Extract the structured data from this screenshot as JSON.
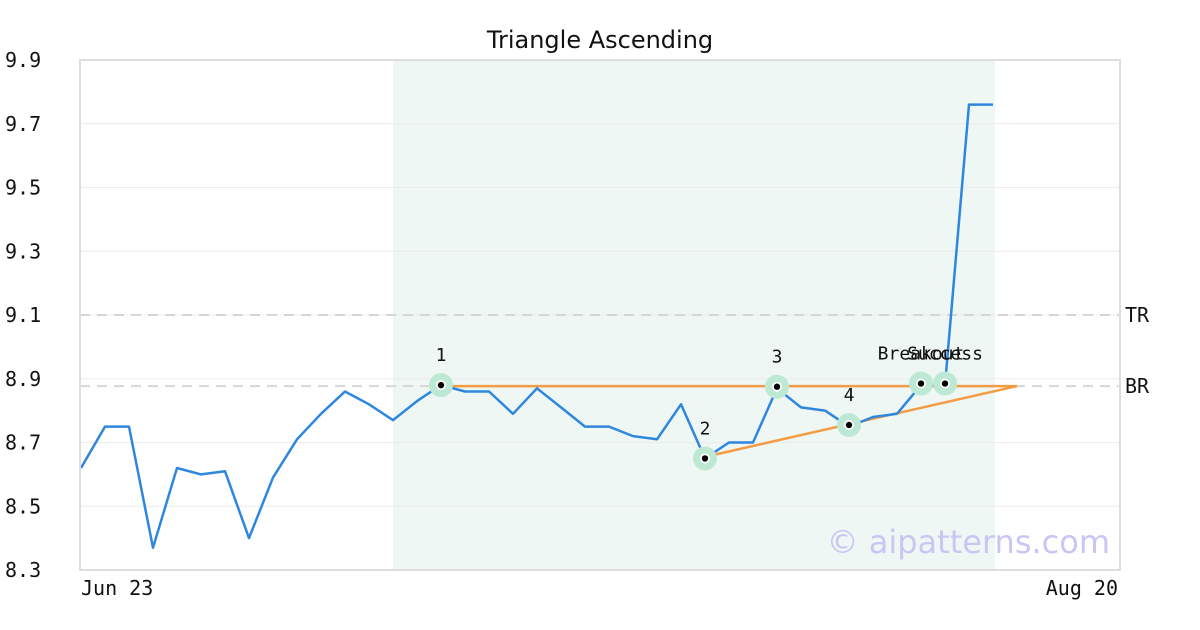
{
  "chart_data": {
    "type": "line",
    "title": "Triangle Ascending",
    "xlabel": "",
    "ylabel": "",
    "x_tick_labels": [
      "Jun 23",
      "Aug 20"
    ],
    "y_ticks": [
      "8.3",
      "8.5",
      "8.7",
      "8.9",
      "9.1",
      "9.3",
      "9.5",
      "9.7",
      "9.9"
    ],
    "ylim": [
      8.3,
      9.9
    ],
    "grid": true,
    "series": [
      {
        "values": [
          8.62,
          8.75,
          8.75,
          8.37,
          8.62,
          8.6,
          8.61,
          8.4,
          8.59,
          8.71,
          8.79,
          8.86,
          8.82,
          8.77,
          8.83,
          8.88,
          8.86,
          8.86,
          8.79,
          8.87,
          8.81,
          8.75,
          8.75,
          8.72,
          8.71,
          8.82,
          8.65,
          8.7,
          8.7,
          8.87,
          8.81,
          8.8,
          8.75,
          8.78,
          8.79,
          8.88,
          8.88,
          9.76,
          9.76
        ],
        "color": "#2e86de"
      }
    ],
    "highlight_region": {
      "from_index": 13,
      "to_index": 38,
      "color": "#eef7f3"
    },
    "pattern_points": [
      {
        "label": "1",
        "index": 15,
        "value": 8.88
      },
      {
        "label": "2",
        "index": 26,
        "value": 8.65
      },
      {
        "label": "3",
        "index": 29,
        "value": 8.875
      },
      {
        "label": "4",
        "index": 32,
        "value": 8.755
      },
      {
        "label": "Breakout",
        "index": 35,
        "value": 8.885
      },
      {
        "label": "Success",
        "index": 36,
        "value": 8.885
      }
    ],
    "resistance_line": {
      "from_index": 15,
      "to_index": 39,
      "value": 8.877,
      "color": "#f39c45"
    },
    "support_line": {
      "from_index": 26,
      "from_value": 8.655,
      "to_index": 39,
      "to_value": 8.877,
      "color": "#f39c45"
    },
    "reference_lines": [
      {
        "label": "TR",
        "value": 9.1
      },
      {
        "label": "BR",
        "value": 8.877
      }
    ],
    "watermark": "© aipatterns.com"
  }
}
